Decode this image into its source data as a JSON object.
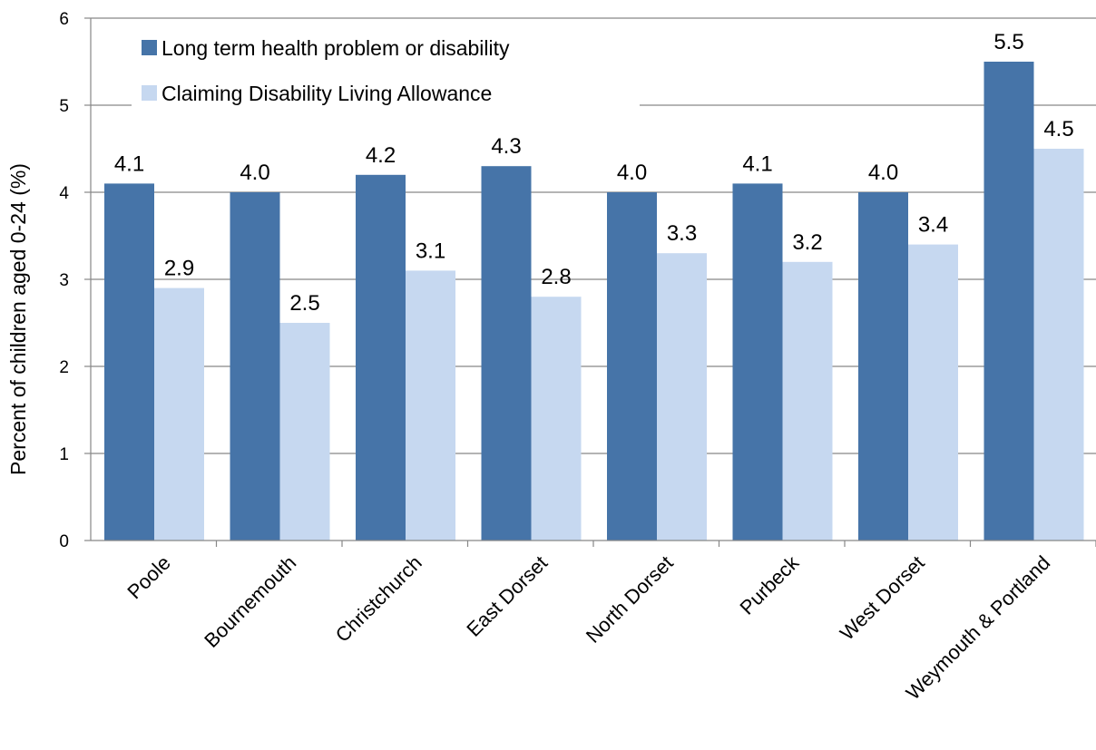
{
  "chart_data": {
    "type": "bar",
    "title": "",
    "xlabel": "",
    "ylabel": "Percent of children aged 0-24 (%)",
    "ylim": [
      0,
      6
    ],
    "yticks": [
      "0",
      "1",
      "2",
      "3",
      "4",
      "5",
      "6"
    ],
    "grid": true,
    "legend_position": "top-left",
    "categories": [
      "Poole",
      "Bournemouth",
      "Christchurch",
      "East Dorset",
      "North Dorset",
      "Purbeck",
      "West Dorset",
      "Weymouth & Portland"
    ],
    "series": [
      {
        "name": "Long term health problem or disability",
        "color": "#4674a8",
        "values": [
          4.1,
          4.0,
          4.2,
          4.3,
          4.0,
          4.1,
          4.0,
          5.5
        ],
        "labels": [
          "4.1",
          "4.0",
          "4.2",
          "4.3",
          "4.0",
          "4.1",
          "4.0",
          "5.5"
        ]
      },
      {
        "name": "Claiming Disability Living Allowance",
        "color": "#c6d8f0",
        "values": [
          2.9,
          2.5,
          3.1,
          2.8,
          3.3,
          3.2,
          3.4,
          4.5
        ],
        "labels": [
          "2.9",
          "2.5",
          "3.1",
          "2.8",
          "3.3",
          "3.2",
          "3.4",
          "4.5"
        ]
      }
    ]
  }
}
